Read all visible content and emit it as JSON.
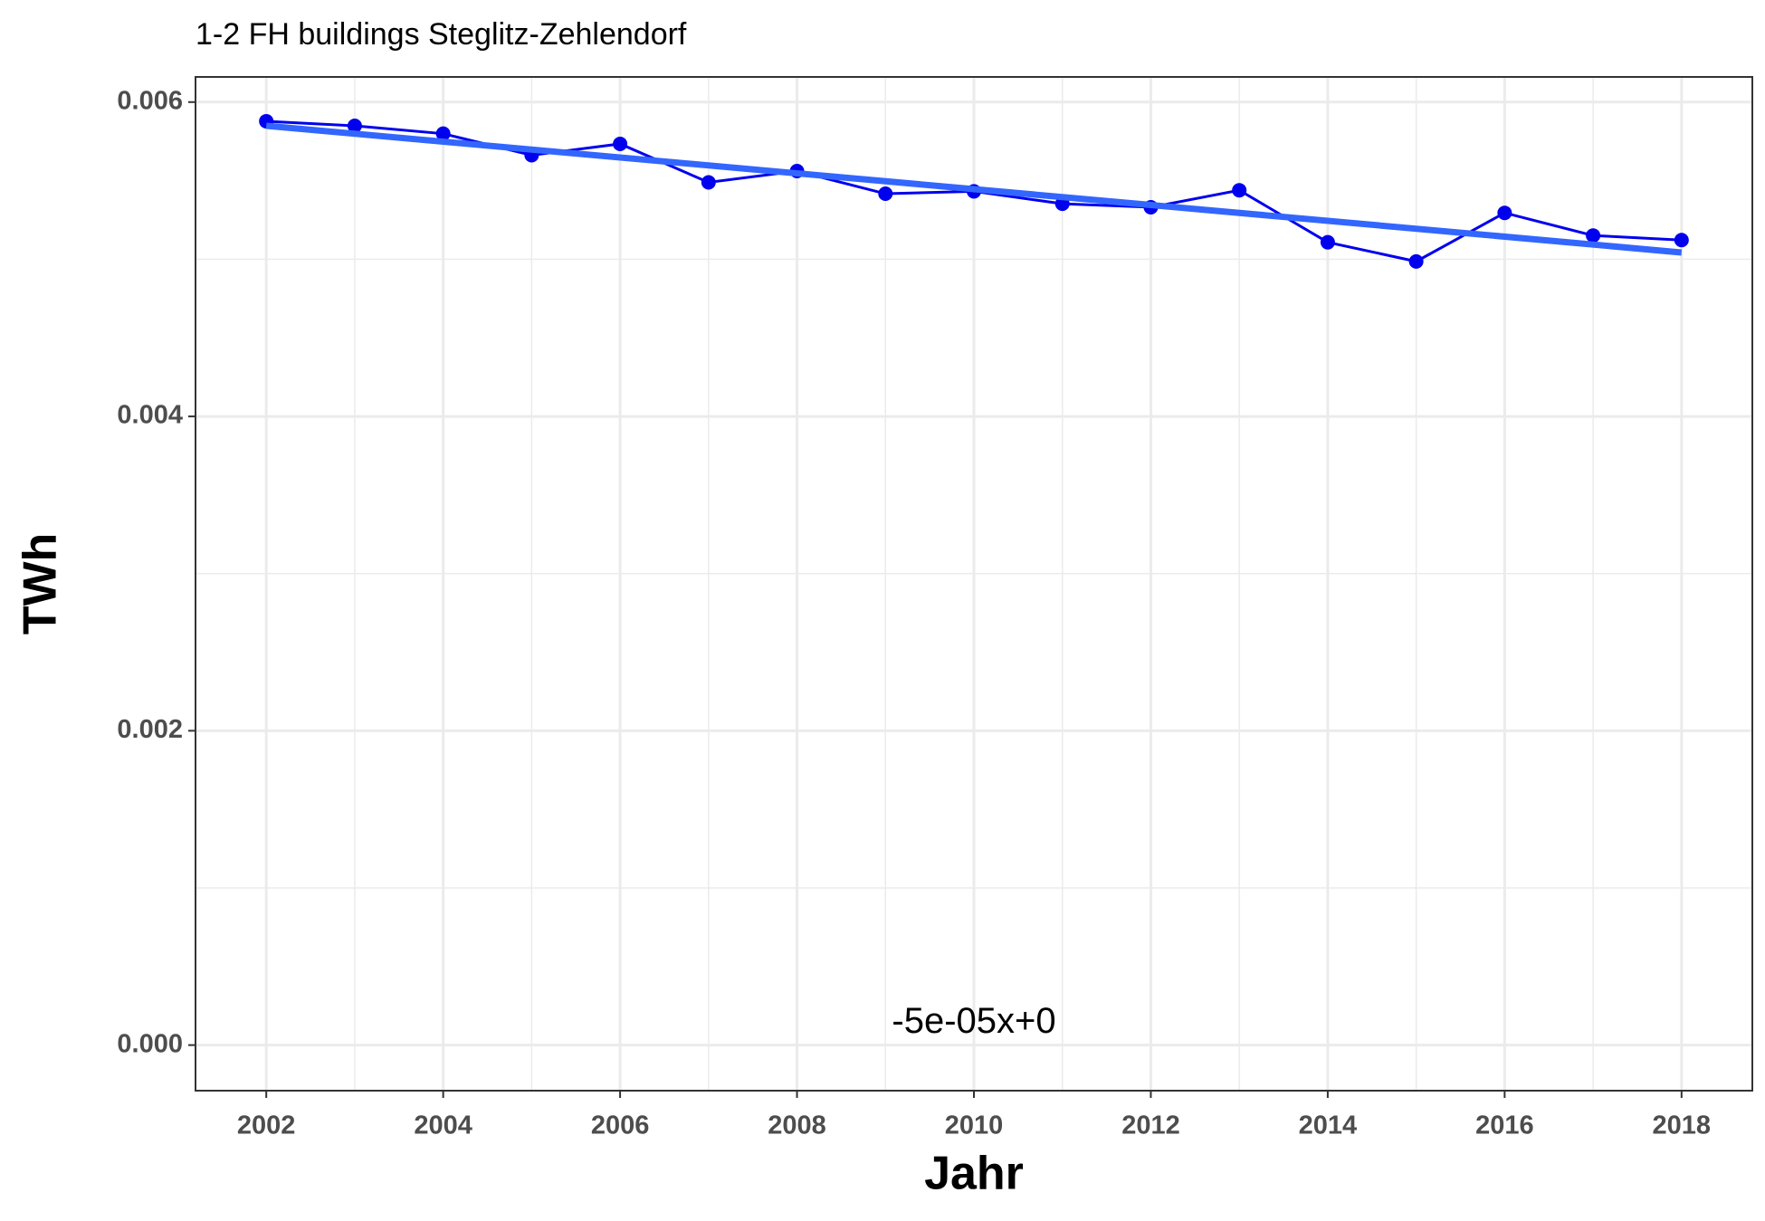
{
  "chart_data": {
    "type": "line",
    "title": "1-2 FH buildings Steglitz-Zehlendorf",
    "x_label": "Jahr",
    "y_label": "TWh",
    "x": [
      2002,
      2003,
      2004,
      2005,
      2006,
      2007,
      2008,
      2009,
      2010,
      2011,
      2012,
      2013,
      2014,
      2015,
      2016,
      2017,
      2018
    ],
    "series": [
      {
        "color": "#0000ee",
        "values": [
          0.005878,
          0.005849,
          0.005799,
          0.005662,
          0.005734,
          0.005489,
          0.005561,
          0.005417,
          0.005432,
          0.005353,
          0.005331,
          0.005439,
          0.005108,
          0.004986,
          0.005295,
          0.005151,
          0.005122
        ]
      }
    ],
    "trend": {
      "x": [
        2002,
        2018
      ],
      "values": [
        0.005849,
        0.005043
      ],
      "color": "#3366ff"
    },
    "annotation": {
      "text": "-5e-05x+0",
      "x": 2010,
      "y": 0.00014
    },
    "xlim": [
      2001.2,
      2018.8
    ],
    "ylim": [
      -0.00029,
      0.00616
    ],
    "xticks": [
      2002,
      2004,
      2006,
      2008,
      2010,
      2012,
      2014,
      2016,
      2018
    ],
    "yticks": [
      {
        "value": 0,
        "label": "0.000"
      },
      0.002,
      0.004,
      0.006
    ],
    "x_minor_grid": [
      2003,
      2005,
      2007,
      2009,
      2011,
      2013,
      2015,
      2017
    ],
    "y_minor_grid": [
      0.001,
      0.003,
      0.005
    ],
    "grid": true
  }
}
